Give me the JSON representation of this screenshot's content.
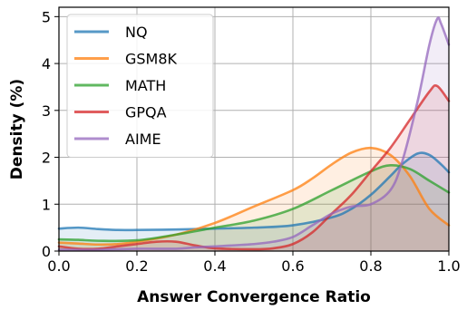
{
  "chart_data": {
    "type": "area",
    "title": "",
    "xlabel": "Answer Convergence Ratio",
    "ylabel": "Density (%)",
    "xlim": [
      0.0,
      1.0
    ],
    "ylim": [
      0,
      5.2
    ],
    "x_ticks": [
      "0.0",
      "0.2",
      "0.4",
      "0.6",
      "0.8",
      "1.0"
    ],
    "x_tick_values": [
      0.0,
      0.2,
      0.4,
      0.6,
      0.8,
      1.0
    ],
    "y_ticks": [
      "0",
      "1",
      "2",
      "3",
      "4",
      "5"
    ],
    "y_tick_values": [
      0,
      1,
      2,
      3,
      4,
      5
    ],
    "grid": true,
    "legend_position": "top-left",
    "series": [
      {
        "name": "NQ",
        "color": "#1f77b4",
        "points": [
          [
            0.0,
            0.48
          ],
          [
            0.05,
            0.5
          ],
          [
            0.1,
            0.47
          ],
          [
            0.15,
            0.45
          ],
          [
            0.2,
            0.45
          ],
          [
            0.3,
            0.46
          ],
          [
            0.4,
            0.48
          ],
          [
            0.5,
            0.5
          ],
          [
            0.6,
            0.55
          ],
          [
            0.7,
            0.72
          ],
          [
            0.75,
            0.9
          ],
          [
            0.8,
            1.2
          ],
          [
            0.85,
            1.6
          ],
          [
            0.88,
            1.85
          ],
          [
            0.92,
            2.08
          ],
          [
            0.95,
            2.05
          ],
          [
            0.98,
            1.85
          ],
          [
            1.0,
            1.68
          ]
        ]
      },
      {
        "name": "GSM8K",
        "color": "#ff7f0e",
        "points": [
          [
            0.0,
            0.18
          ],
          [
            0.05,
            0.16
          ],
          [
            0.1,
            0.14
          ],
          [
            0.15,
            0.15
          ],
          [
            0.2,
            0.2
          ],
          [
            0.3,
            0.35
          ],
          [
            0.4,
            0.6
          ],
          [
            0.5,
            0.95
          ],
          [
            0.6,
            1.3
          ],
          [
            0.65,
            1.55
          ],
          [
            0.7,
            1.85
          ],
          [
            0.75,
            2.1
          ],
          [
            0.8,
            2.2
          ],
          [
            0.85,
            2.05
          ],
          [
            0.9,
            1.6
          ],
          [
            0.95,
            0.9
          ],
          [
            1.0,
            0.55
          ]
        ]
      },
      {
        "name": "MATH",
        "color": "#2ca02c",
        "points": [
          [
            0.0,
            0.25
          ],
          [
            0.05,
            0.24
          ],
          [
            0.1,
            0.22
          ],
          [
            0.2,
            0.23
          ],
          [
            0.3,
            0.35
          ],
          [
            0.4,
            0.5
          ],
          [
            0.5,
            0.65
          ],
          [
            0.6,
            0.9
          ],
          [
            0.7,
            1.3
          ],
          [
            0.8,
            1.7
          ],
          [
            0.85,
            1.83
          ],
          [
            0.9,
            1.75
          ],
          [
            0.95,
            1.5
          ],
          [
            1.0,
            1.25
          ]
        ]
      },
      {
        "name": "GPQA",
        "color": "#d62728",
        "points": [
          [
            0.0,
            0.1
          ],
          [
            0.05,
            0.05
          ],
          [
            0.1,
            0.05
          ],
          [
            0.15,
            0.1
          ],
          [
            0.2,
            0.15
          ],
          [
            0.25,
            0.2
          ],
          [
            0.3,
            0.2
          ],
          [
            0.35,
            0.12
          ],
          [
            0.4,
            0.06
          ],
          [
            0.5,
            0.04
          ],
          [
            0.55,
            0.06
          ],
          [
            0.6,
            0.15
          ],
          [
            0.65,
            0.4
          ],
          [
            0.7,
            0.8
          ],
          [
            0.75,
            1.2
          ],
          [
            0.8,
            1.7
          ],
          [
            0.85,
            2.2
          ],
          [
            0.9,
            2.8
          ],
          [
            0.95,
            3.4
          ],
          [
            0.97,
            3.52
          ],
          [
            1.0,
            3.2
          ]
        ]
      },
      {
        "name": "AIME",
        "color": "#9467bd",
        "points": [
          [
            0.0,
            0.03
          ],
          [
            0.1,
            0.03
          ],
          [
            0.2,
            0.05
          ],
          [
            0.3,
            0.05
          ],
          [
            0.35,
            0.08
          ],
          [
            0.4,
            0.1
          ],
          [
            0.5,
            0.15
          ],
          [
            0.55,
            0.2
          ],
          [
            0.6,
            0.3
          ],
          [
            0.65,
            0.55
          ],
          [
            0.7,
            0.8
          ],
          [
            0.75,
            0.95
          ],
          [
            0.8,
            1.0
          ],
          [
            0.85,
            1.3
          ],
          [
            0.88,
            1.9
          ],
          [
            0.92,
            3.2
          ],
          [
            0.95,
            4.4
          ],
          [
            0.97,
            4.95
          ],
          [
            0.98,
            4.85
          ],
          [
            1.0,
            4.4
          ]
        ]
      }
    ]
  }
}
